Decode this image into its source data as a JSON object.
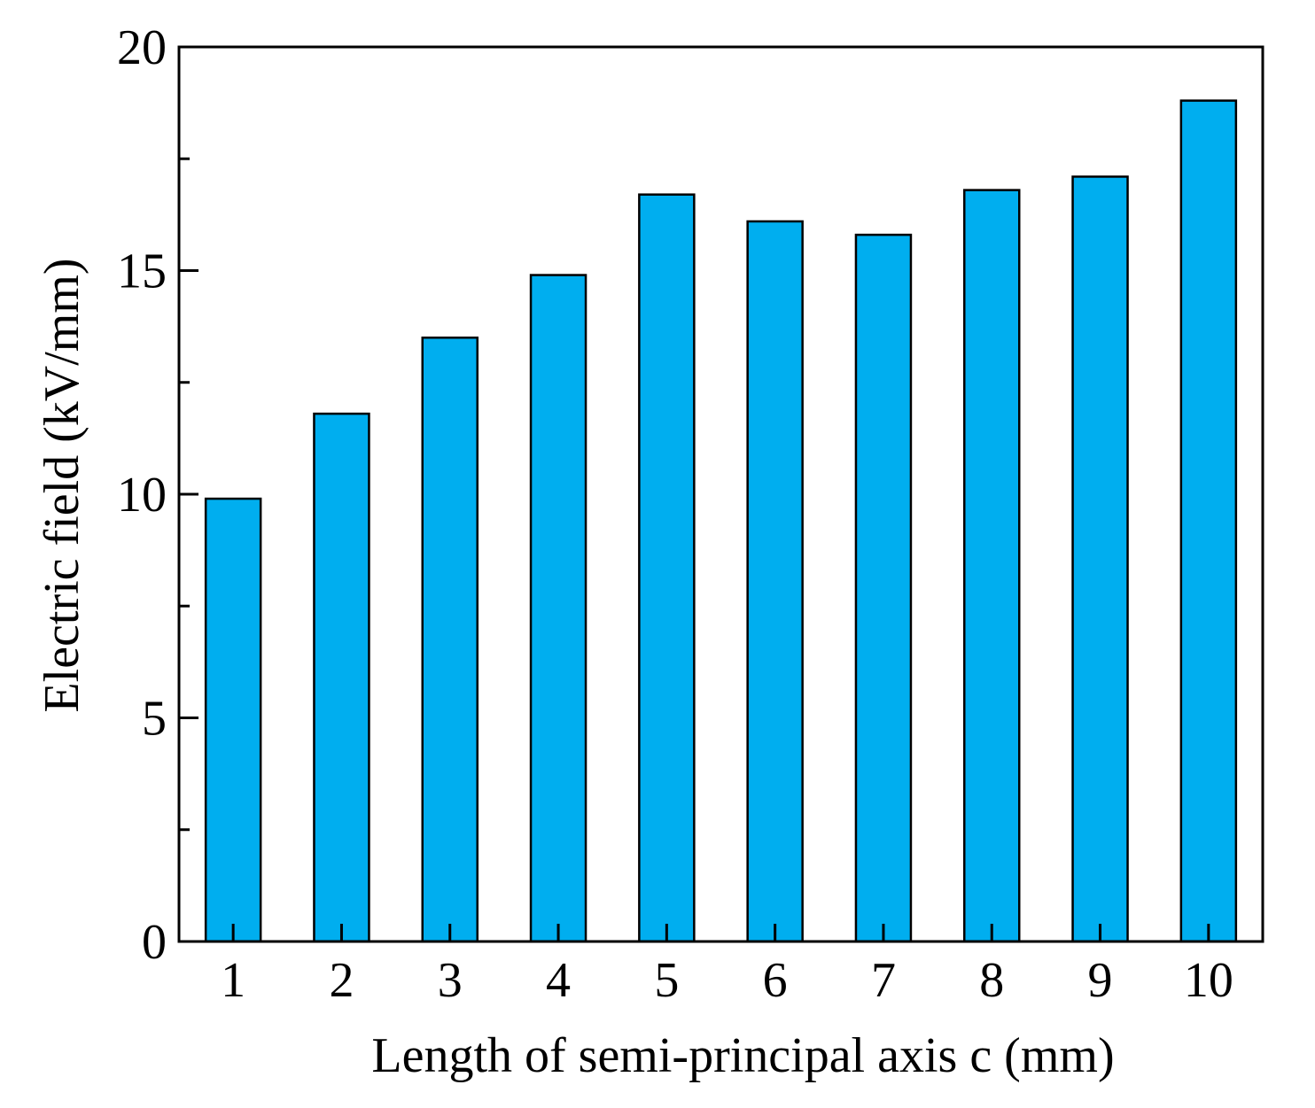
{
  "chart_data": {
    "type": "bar",
    "title": "",
    "xlabel": "Length of  semi-principal axis c (mm)",
    "ylabel": "Electric field (kV/mm)",
    "categories": [
      "1",
      "2",
      "3",
      "4",
      "5",
      "6",
      "7",
      "8",
      "9",
      "10"
    ],
    "values": [
      9.9,
      11.8,
      13.5,
      14.9,
      16.7,
      16.1,
      15.8,
      16.8,
      17.1,
      18.8
    ],
    "ylim": [
      0,
      20
    ],
    "yticks": [
      0,
      5,
      10,
      15,
      20
    ],
    "yticklabels": [
      "0",
      "5",
      "10",
      "15",
      "20"
    ],
    "y_minor_step": 2.5,
    "grid": false,
    "legend": "none",
    "bar_color": "#00AEEF",
    "edge_color": "#000000"
  }
}
